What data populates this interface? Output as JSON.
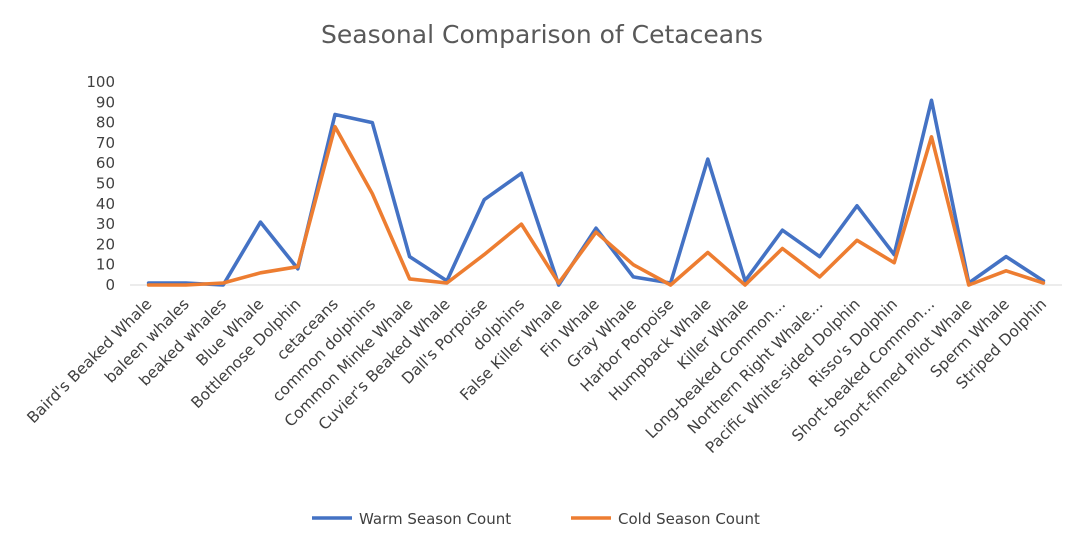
{
  "chart_data": {
    "type": "line",
    "title": "Seasonal Comparison of Cetaceans",
    "xlabel": "",
    "ylabel": "",
    "ylim": [
      0,
      100
    ],
    "yticks": [
      0,
      10,
      20,
      30,
      40,
      50,
      60,
      70,
      80,
      90,
      100
    ],
    "legend_position": "bottom",
    "grid": false,
    "categories": [
      "Baird's Beaked Whale",
      "baleen whales",
      "beaked whales",
      "Blue Whale",
      "Bottlenose Dolphin",
      "cetaceans",
      "common dolphins",
      "Common Minke Whale",
      "Cuvier's Beaked Whale",
      "Dall's Porpoise",
      "dolphins",
      "False Killer Whale",
      "Fin Whale",
      "Gray Whale",
      "Harbor Porpoise",
      "Humpback Whale",
      "Killer Whale",
      "Long-beaked Common…",
      "Northern Right Whale…",
      "Pacific White-sided Dolphin",
      "Risso's Dolphin",
      "Short-beaked Common…",
      "Short-finned Pilot Whale",
      "Sperm Whale",
      "Striped Dolphin"
    ],
    "series": [
      {
        "name": "Warm Season Count",
        "color": "#4472c4",
        "values": [
          1,
          1,
          0,
          31,
          8,
          84,
          80,
          14,
          2,
          42,
          55,
          0,
          28,
          4,
          1,
          62,
          2,
          27,
          14,
          39,
          15,
          91,
          1,
          14,
          2
        ]
      },
      {
        "name": "Cold Season Count",
        "color": "#ed7d31",
        "values": [
          0,
          0,
          1,
          6,
          9,
          78,
          45,
          3,
          1,
          15,
          30,
          1,
          26,
          10,
          0,
          16,
          0,
          18,
          4,
          22,
          11,
          73,
          0,
          7,
          1
        ]
      }
    ]
  }
}
